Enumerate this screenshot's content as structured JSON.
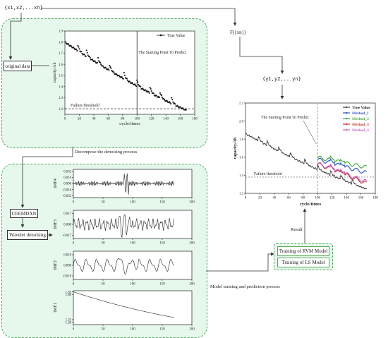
{
  "top_sequence": "{x1,x2,...xn}",
  "f_label": "F({xn})",
  "y_sequence": "{y1,y2,...yn}",
  "boxes": {
    "original_data": "original data",
    "ceemdan": "CEEMDAN",
    "wavelet": "Wavelet denoising",
    "rvm": "Training of RVM Model",
    "ls": "Training of LS Model"
  },
  "labels": {
    "decompose": "Decompose the denoising process",
    "model_training": "Model training and prediction process",
    "result": "Result"
  },
  "colors": {
    "panel_bg": "#e6f7ec",
    "panel_border": "#4aaa5e",
    "true_value": "#444444",
    "method_1": "#3355cc",
    "method_2": "#44aa44",
    "method_3": "#cc3333",
    "method_4": "#cc66cc",
    "predict_line": "#e08a2a",
    "arrow": "#333333"
  },
  "chart_data": [
    {
      "id": "original",
      "type": "scatter",
      "legend": [
        "True Value"
      ],
      "annotation": "The Starting Point To Predict",
      "threshold_label": "Failure threshold",
      "xlabel": "cycle/times",
      "ylabel": "capacity/Ah",
      "xlim": [
        0,
        180
      ],
      "ylim": [
        1.15,
        1.9
      ],
      "xticks": [
        "0",
        "20",
        "40",
        "60",
        "80",
        "100",
        "120",
        "140",
        "160",
        "180"
      ],
      "yticks": [
        "1.2",
        "1.3",
        "1.4",
        "1.5",
        "1.6",
        "1.7",
        "1.8",
        "1.9"
      ],
      "threshold": 1.2,
      "predict_start": 100,
      "x_count": 168
    },
    {
      "id": "imf4",
      "type": "line",
      "ylabel": "IMF4",
      "xlim": [
        0,
        200
      ],
      "ylim": [
        -0.037,
        0.037
      ],
      "xticks": [
        "0",
        "50",
        "100",
        "150",
        "200"
      ],
      "yticks": [
        "0.032",
        "0.016",
        "0.000",
        "-0.016",
        "-0.032"
      ]
    },
    {
      "id": "imf3",
      "type": "line",
      "ylabel": "IMF3",
      "xlim": [
        0,
        200
      ],
      "ylim": [
        -0.022,
        0.022
      ],
      "xticks": [
        "0",
        "50",
        "100",
        "150",
        "200"
      ],
      "yticks": [
        "0.017",
        "0.000",
        "-0.017"
      ]
    },
    {
      "id": "imf2",
      "type": "line",
      "ylabel": "IMF2",
      "xlim": [
        0,
        200
      ],
      "ylim": [
        -0.024,
        0.024
      ],
      "xticks": [
        "0",
        "50",
        "100",
        "150",
        "200"
      ],
      "yticks": [
        "0.018",
        "0.000",
        "-0.018"
      ]
    },
    {
      "id": "imf1",
      "type": "line",
      "ylabel": "IMF1",
      "xlim": [
        0,
        200
      ],
      "ylim": [
        1.26,
        1.87
      ],
      "xticks": [
        "0",
        "50",
        "100",
        "150",
        "200"
      ],
      "yticks": [
        "1.85",
        "1.80",
        "1.35",
        "1.30"
      ]
    },
    {
      "id": "prediction",
      "type": "line",
      "legend": [
        "True Value",
        "Method_1",
        "Method_2",
        "Method_3",
        "Method_4"
      ],
      "annotation": "The Starting Point To Predict",
      "threshold_label": "Failure threshold",
      "xlabel": "cycle/times",
      "ylabel": "capacity/Ah",
      "xlim": [
        0,
        180
      ],
      "ylim": [
        1.2,
        2.2
      ],
      "xticks": [
        "0",
        "20",
        "40",
        "60",
        "80",
        "100",
        "120",
        "140",
        "160",
        "180"
      ],
      "yticks": [
        "1.2",
        "1.4",
        "1.6",
        "1.8",
        "2.0",
        "2.2"
      ],
      "threshold": 1.38,
      "predict_start": 100
    }
  ]
}
